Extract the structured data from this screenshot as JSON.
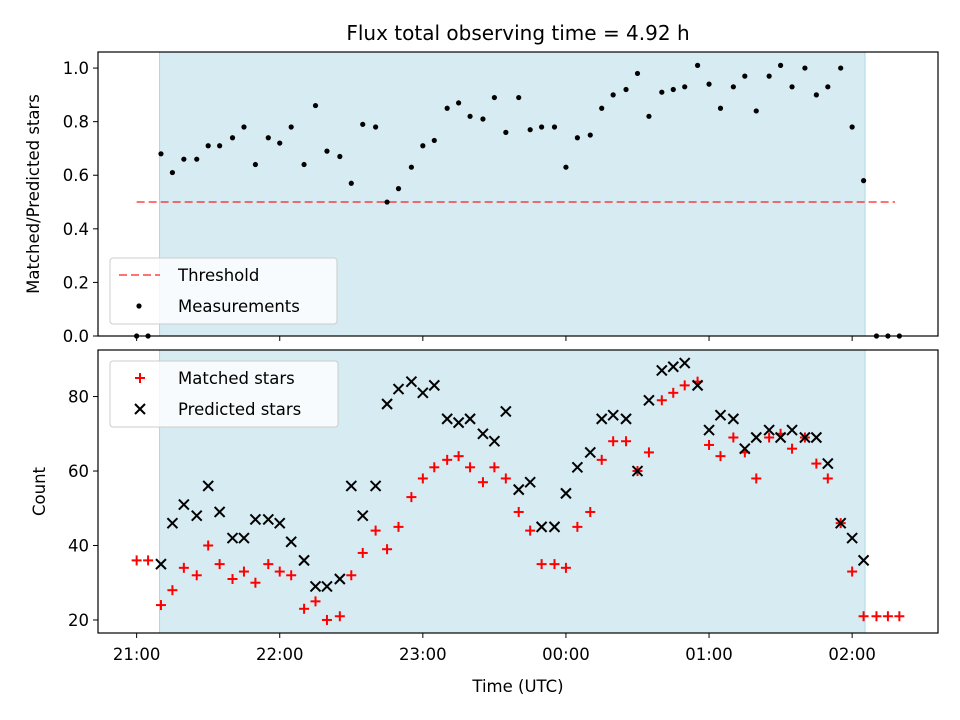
{
  "chart_data": {
    "title": "Flux total observing time = 4.92 h",
    "xlabel": "Time (UTC)",
    "x_tick_labels": [
      "21:00",
      "22:00",
      "23:00",
      "00:00",
      "01:00",
      "02:00"
    ],
    "x_tick_values": [
      0,
      1,
      2,
      3,
      4,
      5
    ],
    "x_unit_note": "hours",
    "x_range": [
      -0.27,
      5.6
    ],
    "observing_window": [
      0.16,
      5.09
    ],
    "colors": {
      "window": "#add8e6",
      "threshold": "#ff0000",
      "matched": "#ff0000",
      "predicted": "#000000",
      "measurement": "#000000"
    },
    "panels": [
      {
        "type": "scatter",
        "ylabel": "Matched/Predicted stars",
        "ylim": [
          0,
          1.06
        ],
        "y_tick_labels": [
          "0.0",
          "0.2",
          "0.4",
          "0.6",
          "0.8",
          "1.0"
        ],
        "y_tick_values": [
          0,
          0.2,
          0.4,
          0.6,
          0.8,
          1.0
        ],
        "legend_position": "lower-left",
        "threshold": {
          "name": "Threshold",
          "value": 0.5,
          "x_range": [
            0,
            5.3
          ]
        },
        "series": [
          {
            "name": "Measurements",
            "x": [
              0,
              0.08,
              0.17,
              0.25,
              0.33,
              0.42,
              0.5,
              0.58,
              0.67,
              0.75,
              0.83,
              0.92,
              1.0,
              1.08,
              1.17,
              1.25,
              1.33,
              1.42,
              1.5,
              1.58,
              1.67,
              1.75,
              1.83,
              1.92,
              2.0,
              2.08,
              2.17,
              2.25,
              2.33,
              2.42,
              2.5,
              2.58,
              2.67,
              2.75,
              2.83,
              2.92,
              3.0,
              3.08,
              3.17,
              3.25,
              3.33,
              3.42,
              3.5,
              3.58,
              3.67,
              3.75,
              3.83,
              3.92,
              4.0,
              4.08,
              4.17,
              4.25,
              4.33,
              4.42,
              4.5,
              4.58,
              4.67,
              4.75,
              4.83,
              4.92,
              5.0,
              5.08,
              5.17,
              5.25,
              5.33
            ],
            "y": [
              0.0,
              0.0,
              0.68,
              0.61,
              0.66,
              0.66,
              0.71,
              0.71,
              0.74,
              0.78,
              0.64,
              0.74,
              0.72,
              0.78,
              0.64,
              0.86,
              0.69,
              0.67,
              0.57,
              0.79,
              0.78,
              0.5,
              0.55,
              0.63,
              0.71,
              0.73,
              0.85,
              0.87,
              0.82,
              0.81,
              0.89,
              0.76,
              0.89,
              0.77,
              0.78,
              0.78,
              0.63,
              0.74,
              0.75,
              0.85,
              0.9,
              0.92,
              0.98,
              0.82,
              0.91,
              0.92,
              0.93,
              1.01,
              0.94,
              0.85,
              0.93,
              0.97,
              0.84,
              0.97,
              1.01,
              0.93,
              1.0,
              0.9,
              0.93,
              1.0,
              0.78,
              0.58,
              0.0,
              0.0,
              0.0
            ]
          }
        ]
      },
      {
        "type": "scatter",
        "ylabel": "Count",
        "ylim": [
          16.5,
          92.5
        ],
        "y_tick_labels": [
          "20",
          "40",
          "60",
          "80"
        ],
        "y_tick_values": [
          20,
          40,
          60,
          80
        ],
        "legend_position": "upper-left",
        "series": [
          {
            "name": "Matched stars",
            "marker": "plus",
            "x": [
              0,
              0.08,
              0.17,
              0.25,
              0.33,
              0.42,
              0.5,
              0.58,
              0.67,
              0.75,
              0.83,
              0.92,
              1.0,
              1.08,
              1.17,
              1.25,
              1.33,
              1.42,
              1.5,
              1.58,
              1.67,
              1.75,
              1.83,
              1.92,
              2.0,
              2.08,
              2.17,
              2.25,
              2.33,
              2.42,
              2.5,
              2.58,
              2.67,
              2.75,
              2.83,
              2.92,
              3.0,
              3.08,
              3.17,
              3.25,
              3.33,
              3.42,
              3.5,
              3.58,
              3.67,
              3.75,
              3.83,
              3.92,
              4.0,
              4.08,
              4.17,
              4.25,
              4.33,
              4.42,
              4.5,
              4.58,
              4.67,
              4.75,
              4.83,
              4.92,
              5.0,
              5.08,
              5.17,
              5.25,
              5.33
            ],
            "y": [
              36,
              36,
              24,
              28,
              34,
              32,
              40,
              35,
              31,
              33,
              30,
              35,
              33,
              32,
              23,
              25,
              20,
              21,
              32,
              38,
              44,
              39,
              45,
              53,
              58,
              61,
              63,
              64,
              61,
              57,
              61,
              58,
              49,
              44,
              35,
              35,
              34,
              45,
              49,
              63,
              68,
              68,
              60,
              65,
              79,
              81,
              83,
              84,
              67,
              64,
              69,
              65,
              58,
              69,
              70,
              66,
              69,
              62,
              58,
              46,
              33,
              21,
              21,
              21,
              21
            ]
          },
          {
            "name": "Predicted stars",
            "marker": "cross",
            "x": [
              0.17,
              0.25,
              0.33,
              0.42,
              0.5,
              0.58,
              0.67,
              0.75,
              0.83,
              0.92,
              1.0,
              1.08,
              1.17,
              1.25,
              1.33,
              1.42,
              1.5,
              1.58,
              1.67,
              1.75,
              1.83,
              1.92,
              2.0,
              2.08,
              2.17,
              2.25,
              2.33,
              2.42,
              2.5,
              2.58,
              2.67,
              2.75,
              2.83,
              2.92,
              3.0,
              3.08,
              3.17,
              3.25,
              3.33,
              3.42,
              3.5,
              3.58,
              3.67,
              3.75,
              3.83,
              3.92,
              4.0,
              4.08,
              4.17,
              4.25,
              4.33,
              4.42,
              4.5,
              4.58,
              4.67,
              4.75,
              4.83,
              4.92,
              5.0,
              5.08
            ],
            "y": [
              35,
              46,
              51,
              48,
              56,
              49,
              42,
              42,
              47,
              47,
              46,
              41,
              36,
              29,
              29,
              31,
              56,
              48,
              56,
              78,
              82,
              84,
              81,
              83,
              74,
              73,
              74,
              70,
              68,
              76,
              55,
              57,
              45,
              45,
              54,
              61,
              65,
              74,
              75,
              74,
              60,
              79,
              87,
              88,
              89,
              83,
              71,
              75,
              74,
              66,
              69,
              71,
              69,
              71,
              69,
              69,
              62,
              46,
              42,
              36
            ]
          }
        ]
      }
    ]
  }
}
